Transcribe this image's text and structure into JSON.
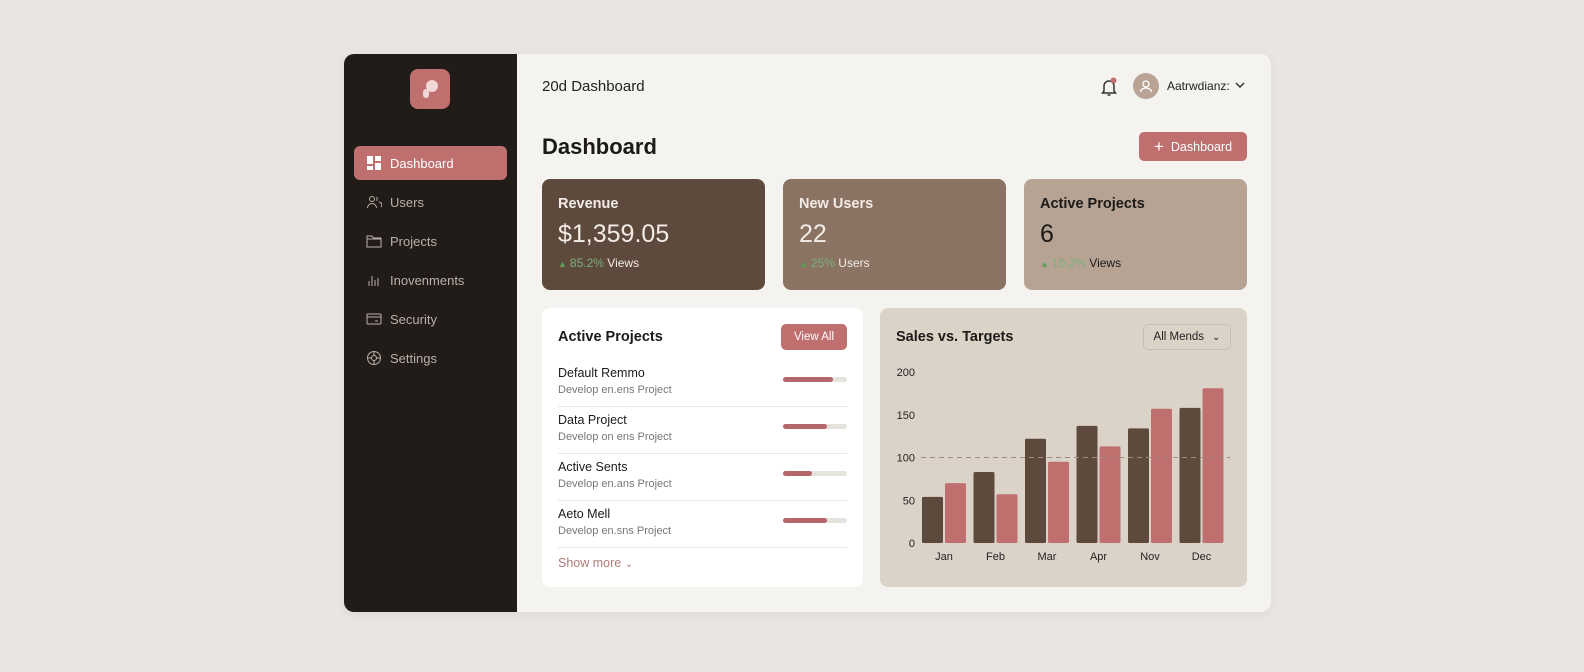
{
  "sidebar": {
    "items": [
      {
        "label": "Dashboard",
        "icon": "dashboard-icon",
        "active": true
      },
      {
        "label": "Users",
        "icon": "users-icon"
      },
      {
        "label": "Projects",
        "icon": "folder-icon"
      },
      {
        "label": "Inovenments",
        "icon": "bar-chart-icon"
      },
      {
        "label": "Security",
        "icon": "card-icon"
      },
      {
        "label": "Settings",
        "icon": "gear-icon"
      }
    ]
  },
  "header": {
    "title": "20d Dashboard",
    "username": "Aatrwdianz:"
  },
  "page": {
    "title": "Dashboard",
    "add_button": "Dashboard"
  },
  "stats": [
    {
      "title": "Revenue",
      "value": "$1,359.05",
      "change": "85.2%",
      "change_label": "Views"
    },
    {
      "title": "New Users",
      "value": "22",
      "change": "25%",
      "change_label": "Users"
    },
    {
      "title": "Active Projects",
      "value": "6",
      "change": "10.2%",
      "change_label": "Views"
    }
  ],
  "projects": {
    "title": "Active Projects",
    "view_all": "View All",
    "show_more": "Show more",
    "items": [
      {
        "name": "Default Remmo",
        "sub": "Develop en.ens Project",
        "progress": 0.78
      },
      {
        "name": "Data Project",
        "sub": "Develop on ens Project",
        "progress": 0.68
      },
      {
        "name": "Active Sents",
        "sub": "Develop en.ans Project",
        "progress": 0.46
      },
      {
        "name": "Aeto Mell",
        "sub": "Develop en.sns Project",
        "progress": 0.68
      }
    ]
  },
  "colors": {
    "accent": "#c06f6f",
    "sales": "#5e4a3d",
    "target": "#c06f6f"
  },
  "chart_data": {
    "type": "bar",
    "title": "Sales vs. Targets",
    "filter": "All Mends",
    "categories": [
      "Jan",
      "Feb",
      "Mar",
      "Apr",
      "Nov",
      "Dec"
    ],
    "series": [
      {
        "values": [
          54,
          83,
          122,
          137,
          134,
          158
        ]
      },
      {
        "values": [
          70,
          57,
          95,
          113,
          157,
          181
        ]
      }
    ],
    "reference_line": 100,
    "yticks": [
      0,
      50,
      100,
      150,
      200
    ],
    "ylim": [
      0,
      200
    ],
    "grid": false
  }
}
